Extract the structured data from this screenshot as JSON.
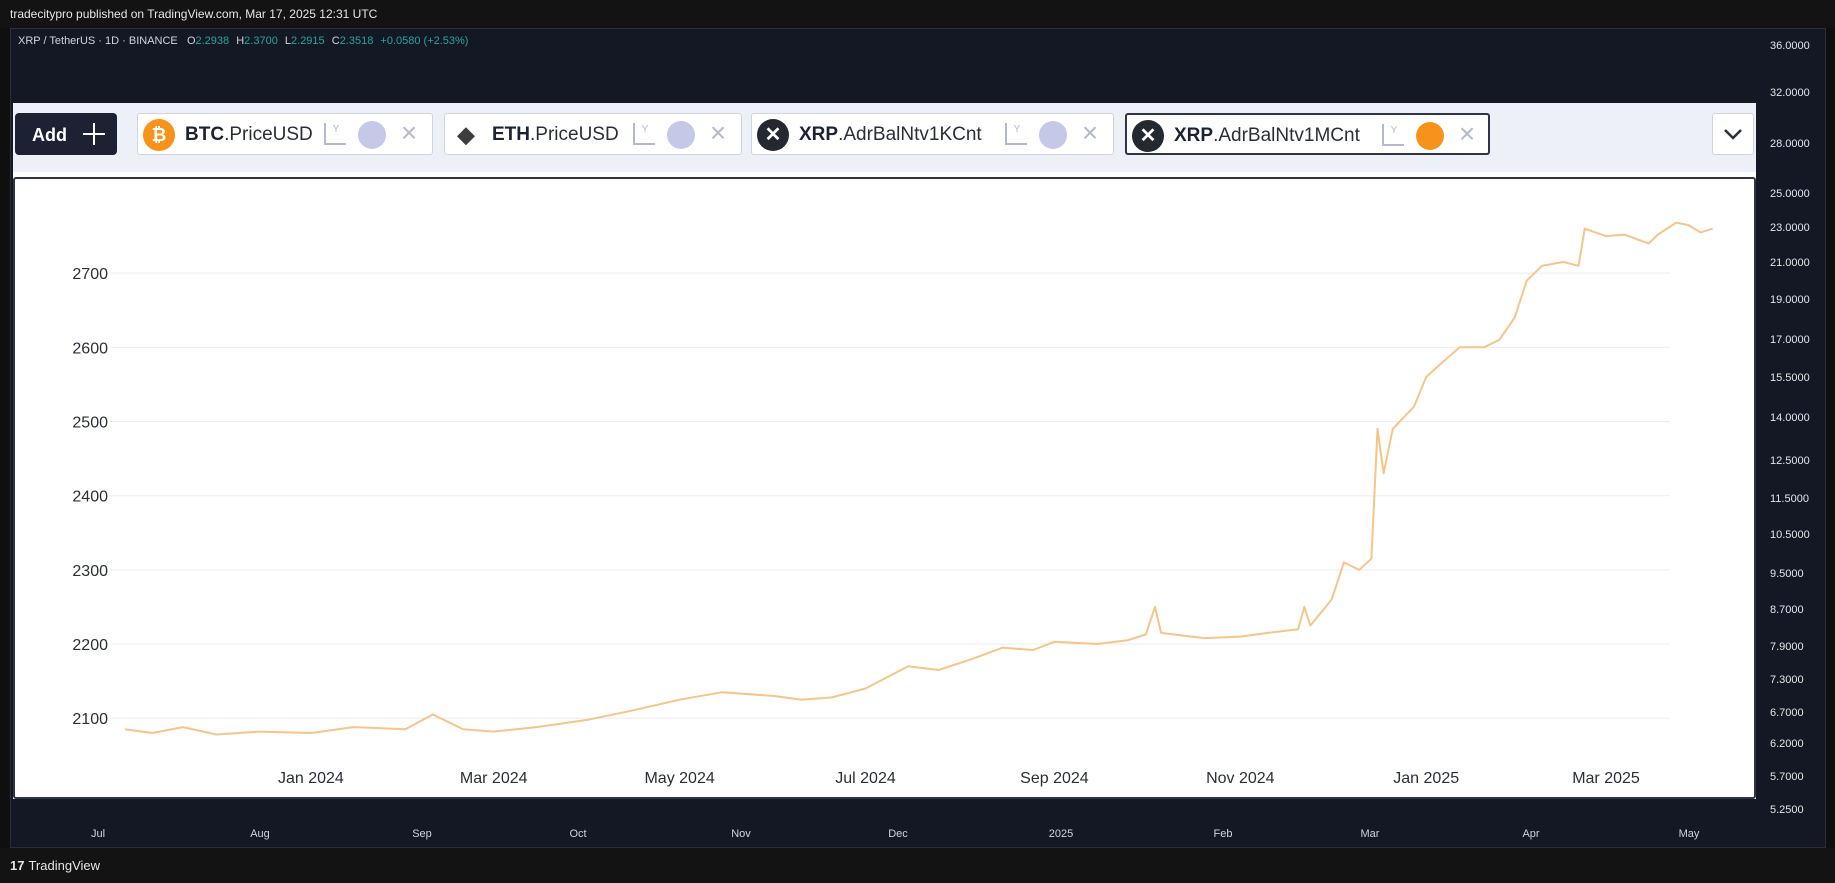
{
  "publish_info": "tradecitypro published on TradingView.com, Mar 17, 2025 12:31 UTC",
  "symbol": {
    "name": "XRP / TetherUS · 1D · BINANCE",
    "o_label": "O",
    "o": "2.2938",
    "h_label": "H",
    "h": "2.3700",
    "l_label": "L",
    "l": "2.2915",
    "c_label": "C",
    "c": "2.3518",
    "change": "+0.0580 (+2.53%)"
  },
  "toolbar": {
    "add_label": "Add",
    "tabs": [
      {
        "coin": "BTC",
        "metric": ".PriceUSD",
        "icon": "bitcoin-icon",
        "glyph": "₿",
        "dot_color": "#c5c8e6",
        "active": false
      },
      {
        "coin": "ETH",
        "metric": ".PriceUSD",
        "icon": "ethereum-icon",
        "glyph": "◆",
        "dot_color": "#c5c8e6",
        "active": false
      },
      {
        "coin": "XRP",
        "metric": ".AdrBalNtv1KCnt",
        "icon": "xrp-icon",
        "glyph": "✕",
        "dot_color": "#c5c8e6",
        "active": false
      },
      {
        "coin": "XRP",
        "metric": ".AdrBalNtv1MCnt",
        "icon": "xrp-icon",
        "glyph": "✕",
        "dot_color": "#f7931a",
        "active": true
      }
    ]
  },
  "right_axis_ticks": [
    "36.0000",
    "32.0000",
    "28.0000",
    "25.0000",
    "23.0000",
    "21.0000",
    "19.0000",
    "17.0000",
    "15.5000",
    "14.0000",
    "12.5000",
    "11.5000",
    "10.5000",
    "9.5000",
    "8.7000",
    "7.9000",
    "7.3000",
    "6.7000",
    "6.2000",
    "5.7000",
    "5.2500"
  ],
  "time_axis_ticks": [
    "Jul",
    "Aug",
    "Sep",
    "Oct",
    "Nov",
    "Dec",
    "2025",
    "Feb",
    "Mar",
    "Apr",
    "May"
  ],
  "footer": {
    "logo_mark": "17",
    "logo_text": "TradingView"
  },
  "colors": {
    "line": "#f5c58a",
    "gridline": "#eceef2",
    "background": "#ffffff"
  },
  "chart_data": {
    "type": "line",
    "ylim": [
      2045,
      2800
    ],
    "xlim": [
      "2023-11-01",
      "2025-03-22"
    ],
    "yticks": [
      2100,
      2200,
      2300,
      2400,
      2500,
      2600,
      2700
    ],
    "xticks": [
      {
        "date": "2024-01-01",
        "label": "Jan 2024"
      },
      {
        "date": "2024-03-01",
        "label": "Mar 2024"
      },
      {
        "date": "2024-05-01",
        "label": "May 2024"
      },
      {
        "date": "2024-07-01",
        "label": "Jul 2024"
      },
      {
        "date": "2024-09-01",
        "label": "Sep 2024"
      },
      {
        "date": "2024-11-01",
        "label": "Nov 2024"
      },
      {
        "date": "2025-01-01",
        "label": "Jan 2025"
      },
      {
        "date": "2025-03-01",
        "label": "Mar 2025"
      }
    ],
    "series": [
      {
        "points": [
          [
            "2023-11-01",
            2085
          ],
          [
            "2023-11-10",
            2080
          ],
          [
            "2023-11-20",
            2088
          ],
          [
            "2023-12-01",
            2078
          ],
          [
            "2023-12-15",
            2082
          ],
          [
            "2024-01-01",
            2080
          ],
          [
            "2024-01-15",
            2088
          ],
          [
            "2024-02-01",
            2085
          ],
          [
            "2024-02-10",
            2105
          ],
          [
            "2024-02-20",
            2085
          ],
          [
            "2024-03-01",
            2082
          ],
          [
            "2024-03-15",
            2088
          ],
          [
            "2024-04-01",
            2098
          ],
          [
            "2024-04-15",
            2110
          ],
          [
            "2024-05-01",
            2125
          ],
          [
            "2024-05-15",
            2135
          ],
          [
            "2024-06-01",
            2130
          ],
          [
            "2024-06-10",
            2125
          ],
          [
            "2024-06-20",
            2128
          ],
          [
            "2024-07-01",
            2140
          ],
          [
            "2024-07-15",
            2170
          ],
          [
            "2024-07-25",
            2165
          ],
          [
            "2024-08-05",
            2180
          ],
          [
            "2024-08-15",
            2195
          ],
          [
            "2024-08-25",
            2192
          ],
          [
            "2024-09-01",
            2203
          ],
          [
            "2024-09-15",
            2200
          ],
          [
            "2024-09-25",
            2205
          ],
          [
            "2024-10-01",
            2213
          ],
          [
            "2024-10-04",
            2250
          ],
          [
            "2024-10-06",
            2215
          ],
          [
            "2024-10-20",
            2208
          ],
          [
            "2024-11-01",
            2210
          ],
          [
            "2024-11-10",
            2215
          ],
          [
            "2024-11-20",
            2220
          ],
          [
            "2024-11-22",
            2250
          ],
          [
            "2024-11-24",
            2225
          ],
          [
            "2024-12-01",
            2260
          ],
          [
            "2024-12-05",
            2310
          ],
          [
            "2024-12-10",
            2300
          ],
          [
            "2024-12-14",
            2315
          ],
          [
            "2024-12-16",
            2490
          ],
          [
            "2024-12-18",
            2430
          ],
          [
            "2024-12-21",
            2490
          ],
          [
            "2024-12-28",
            2520
          ],
          [
            "2025-01-01",
            2560
          ],
          [
            "2025-01-05",
            2575
          ],
          [
            "2025-01-12",
            2600
          ],
          [
            "2025-01-20",
            2600
          ],
          [
            "2025-01-25",
            2610
          ],
          [
            "2025-01-30",
            2640
          ],
          [
            "2025-02-03",
            2690
          ],
          [
            "2025-02-08",
            2710
          ],
          [
            "2025-02-15",
            2715
          ],
          [
            "2025-02-20",
            2710
          ],
          [
            "2025-02-22",
            2760
          ],
          [
            "2025-03-01",
            2750
          ],
          [
            "2025-03-07",
            2752
          ],
          [
            "2025-03-15",
            2740
          ],
          [
            "2025-03-18",
            2752
          ],
          [
            "2025-03-24",
            2768
          ],
          [
            "2025-03-28",
            2765
          ],
          [
            "2025-04-01",
            2755
          ],
          [
            "2025-04-05",
            2760
          ]
        ]
      }
    ]
  }
}
